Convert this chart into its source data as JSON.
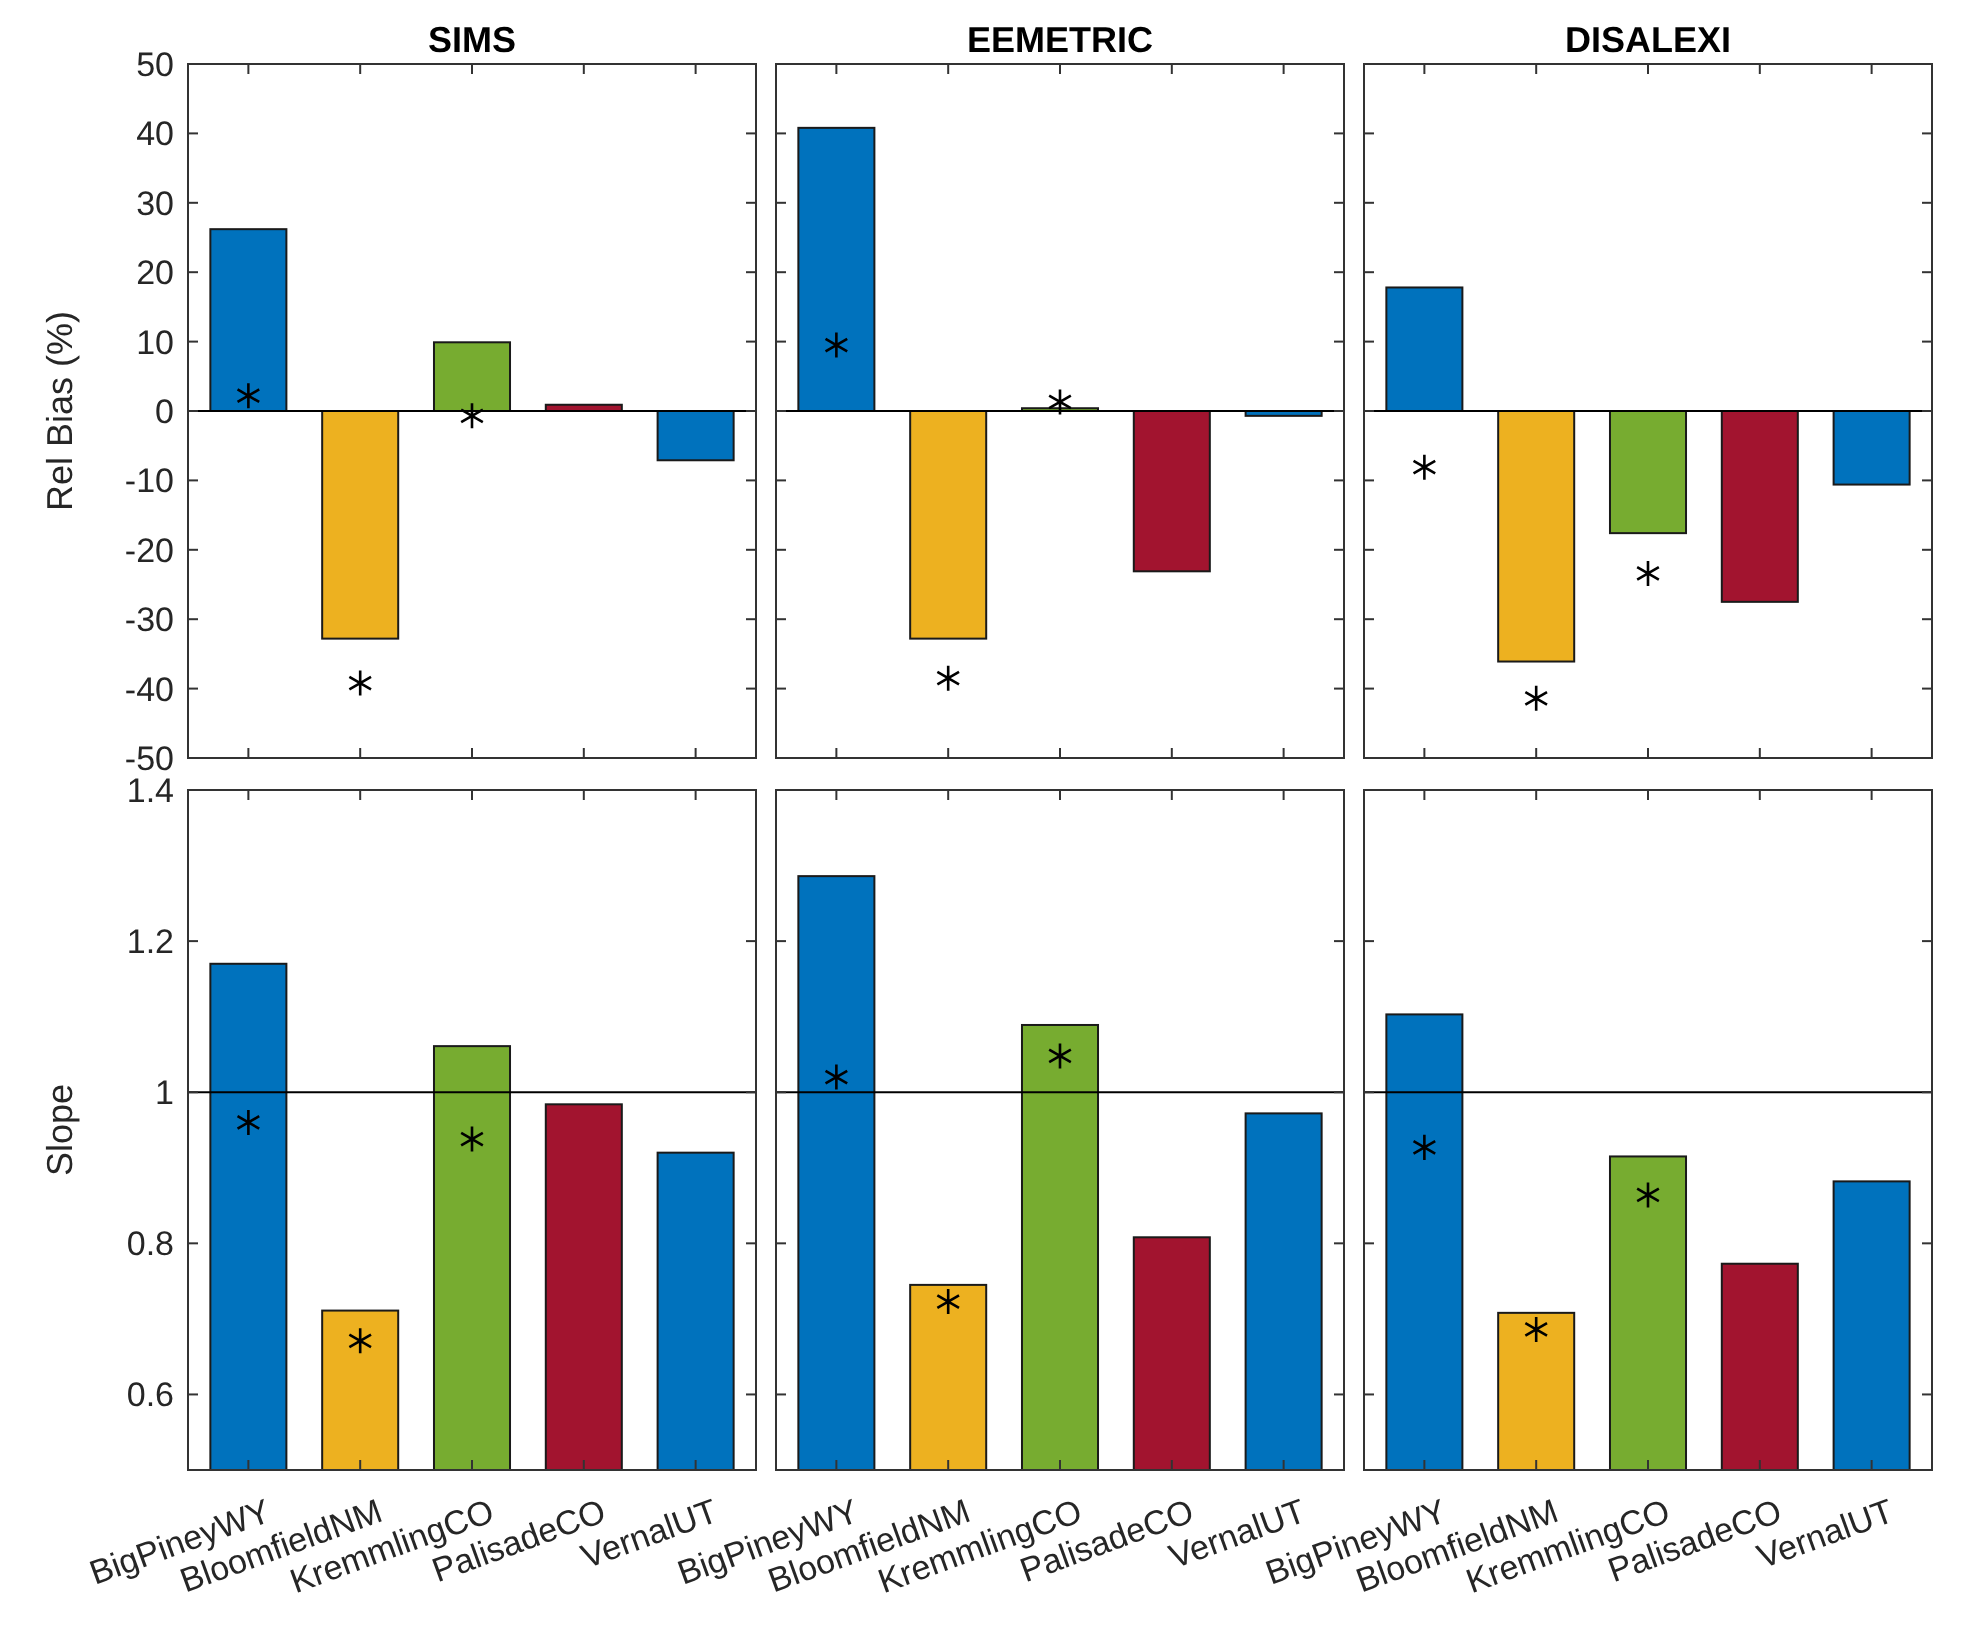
{
  "chart_data": [
    {
      "type": "bar",
      "title": "SIMS",
      "ylabel": "Rel Bias (%)",
      "categories": [
        "BigPineyWY",
        "BloomfieldNM",
        "KremmlingCO",
        "PalisadeCO",
        "VernalUT"
      ],
      "tick_labels": "y",
      "ylim": [
        -50,
        50
      ],
      "yticks": [
        -50,
        -40,
        -30,
        -20,
        -10,
        0,
        10,
        20,
        30,
        40,
        50
      ],
      "ref_lines": [
        {
          "axis": "y",
          "value": 0,
          "color": "#000000"
        }
      ],
      "series": [
        {
          "colors": [
            "#0072bd",
            "#edb120",
            "#77ac30",
            "#a2142f",
            "#0072bd"
          ],
          "values": [
            26.2,
            -32.8,
            9.9,
            0.9,
            -7.1
          ]
        },
        {
          "type": "scatter",
          "marker": "cross",
          "color": "#000000",
          "x": [
            "BigPineyWY",
            "BloomfieldNM",
            "KremmlingCO"
          ],
          "values": [
            2.2,
            -39.2,
            -0.7
          ]
        }
      ]
    },
    {
      "type": "bar",
      "title": "EEMETRIC",
      "categories": [
        "BigPineyWY",
        "BloomfieldNM",
        "KremmlingCO",
        "PalisadeCO",
        "VernalUT"
      ],
      "tick_labels": false,
      "ylim": [
        -50,
        50
      ],
      "yticks": [
        -50,
        -40,
        -30,
        -20,
        -10,
        0,
        10,
        20,
        30,
        40,
        50
      ],
      "ref_lines": [
        {
          "axis": "y",
          "value": 0,
          "color": "#000000"
        }
      ],
      "series": [
        {
          "colors": [
            "#0072bd",
            "#edb120",
            "#77ac30",
            "#a2142f",
            "#0072bd"
          ],
          "values": [
            40.8,
            -32.8,
            0.4,
            -23.1,
            -0.7
          ]
        },
        {
          "type": "scatter",
          "marker": "cross",
          "color": "#000000",
          "x": [
            "BigPineyWY",
            "BloomfieldNM",
            "KremmlingCO"
          ],
          "values": [
            9.5,
            -38.5,
            1.3
          ]
        }
      ]
    },
    {
      "type": "bar",
      "title": "DISALEXI",
      "categories": [
        "BigPineyWY",
        "BloomfieldNM",
        "KremmlingCO",
        "PalisadeCO",
        "VernalUT"
      ],
      "tick_labels": false,
      "ylim": [
        -50,
        50
      ],
      "yticks": [
        -50,
        -40,
        -30,
        -20,
        -10,
        0,
        10,
        20,
        30,
        40,
        50
      ],
      "ref_lines": [
        {
          "axis": "y",
          "value": 0,
          "color": "#000000"
        }
      ],
      "series": [
        {
          "colors": [
            "#0072bd",
            "#edb120",
            "#77ac30",
            "#a2142f",
            "#0072bd"
          ],
          "values": [
            17.8,
            -36.1,
            -17.6,
            -27.5,
            -10.6
          ]
        },
        {
          "type": "scatter",
          "marker": "cross",
          "color": "#000000",
          "x": [
            "BigPineyWY",
            "BloomfieldNM",
            "KremmlingCO"
          ],
          "values": [
            -8.1,
            -41.4,
            -23.4
          ]
        }
      ]
    },
    {
      "type": "bar",
      "ylabel": "Slope",
      "categories": [
        "BigPineyWY",
        "BloomfieldNM",
        "KremmlingCO",
        "PalisadeCO",
        "VernalUT"
      ],
      "ylim": [
        0.5,
        1.4
      ],
      "yticks": [
        0.6,
        0.8,
        1,
        1.2,
        1.4
      ],
      "ref_lines": [
        {
          "axis": "y",
          "value": 1,
          "color": "#000000"
        }
      ],
      "series": [
        {
          "colors": [
            "#0072bd",
            "#edb120",
            "#77ac30",
            "#a2142f",
            "#0072bd"
          ],
          "values": [
            1.17,
            0.711,
            1.061,
            0.984,
            0.92
          ]
        },
        {
          "type": "scatter",
          "marker": "cross",
          "color": "#000000",
          "x": [
            "BigPineyWY",
            "BloomfieldNM",
            "KremmlingCO"
          ],
          "values": [
            0.96,
            0.671,
            0.938
          ]
        }
      ]
    },
    {
      "type": "bar",
      "categories": [
        "BigPineyWY",
        "BloomfieldNM",
        "KremmlingCO",
        "PalisadeCO",
        "VernalUT"
      ],
      "tick_labels": "x",
      "ylim": [
        0.5,
        1.4
      ],
      "yticks": [
        0.6,
        0.8,
        1,
        1.2,
        1.4
      ],
      "ref_lines": [
        {
          "axis": "y",
          "value": 1,
          "color": "#000000"
        }
      ],
      "series": [
        {
          "colors": [
            "#0072bd",
            "#edb120",
            "#77ac30",
            "#a2142f",
            "#0072bd"
          ],
          "values": [
            1.286,
            0.745,
            1.089,
            0.808,
            0.972
          ]
        },
        {
          "type": "scatter",
          "marker": "cross",
          "color": "#000000",
          "x": [
            "BigPineyWY",
            "BloomfieldNM",
            "KremmlingCO"
          ],
          "values": [
            1.02,
            0.723,
            1.048
          ]
        }
      ]
    },
    {
      "type": "bar",
      "categories": [
        "BigPineyWY",
        "BloomfieldNM",
        "KremmlingCO",
        "PalisadeCO",
        "VernalUT"
      ],
      "tick_labels": "x",
      "ylim": [
        0.5,
        1.4
      ],
      "yticks": [
        0.6,
        0.8,
        1,
        1.2,
        1.4
      ],
      "ref_lines": [
        {
          "axis": "y",
          "value": 1,
          "color": "#000000"
        }
      ],
      "series": [
        {
          "colors": [
            "#0072bd",
            "#edb120",
            "#77ac30",
            "#a2142f",
            "#0072bd"
          ],
          "values": [
            1.103,
            0.708,
            0.915,
            0.773,
            0.882
          ]
        },
        {
          "type": "scatter",
          "marker": "cross",
          "color": "#000000",
          "x": [
            "BigPineyWY",
            "BloomfieldNM",
            "KremmlingCO"
          ],
          "values": [
            0.927,
            0.686,
            0.864
          ]
        }
      ]
    }
  ]
}
